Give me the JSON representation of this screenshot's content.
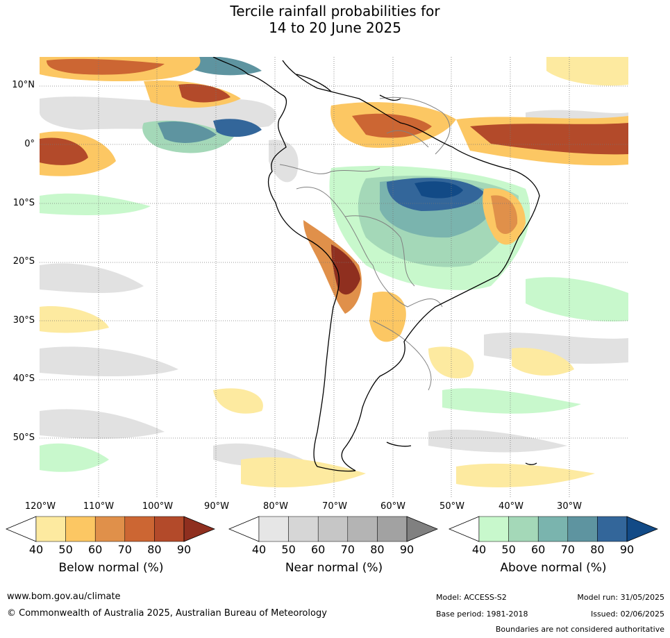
{
  "title_line1": "Tercile rainfall probabilities for",
  "title_line2": "14 to 20 June 2025",
  "lat_labels": [
    "10°N",
    "0°",
    "10°S",
    "20°S",
    "30°S",
    "40°S",
    "50°S"
  ],
  "lon_labels": [
    "120°W",
    "110°W",
    "100°W",
    "90°W",
    "80°W",
    "70°W",
    "60°W",
    "50°W",
    "40°W",
    "30°W"
  ],
  "colorbars": [
    {
      "label": "Below normal (%)",
      "ticks": [
        "40",
        "50",
        "60",
        "70",
        "80",
        "90"
      ],
      "colors": [
        "#ffffff",
        "#fdeaa0",
        "#fcc763",
        "#e0904a",
        "#cc6633",
        "#b34a2a",
        "#8f2f1f"
      ]
    },
    {
      "label": "Near normal (%)",
      "ticks": [
        "40",
        "50",
        "60",
        "70",
        "80",
        "90"
      ],
      "colors": [
        "#ffffff",
        "#e6e6e6",
        "#d6d6d6",
        "#c6c6c6",
        "#b4b4b4",
        "#a2a2a2",
        "#808080"
      ]
    },
    {
      "label": "Above normal (%)",
      "ticks": [
        "40",
        "50",
        "60",
        "70",
        "80",
        "90"
      ],
      "colors": [
        "#ffffff",
        "#c8f8cc",
        "#a4d8b8",
        "#7ab4ae",
        "#5e94a0",
        "#33669a",
        "#124a86"
      ]
    }
  ],
  "footer": {
    "website": "www.bom.gov.au/climate",
    "copyright": "© Commonwealth of Australia 2025, Australian Bureau of Meteorology",
    "model": "Model: ACCESS-S2",
    "base_period": "Base period: 1981-2018",
    "model_run": "Model run: 31/05/2025",
    "issued": "Issued: 02/06/2025",
    "disclaimer": "Boundaries are not considered authoritative"
  }
}
